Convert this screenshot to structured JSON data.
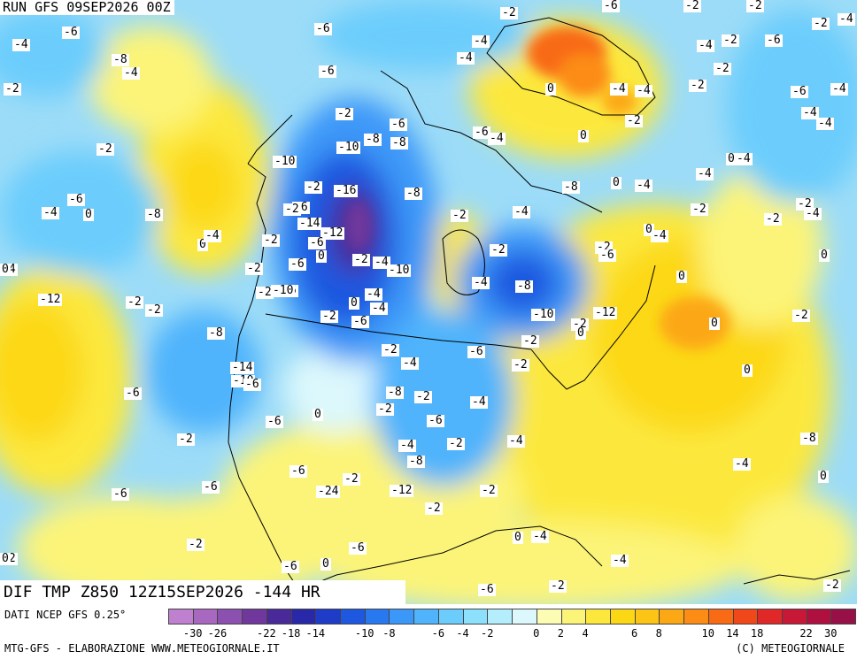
{
  "header": {
    "run_title": "RUN GFS 09SEP2026 00Z"
  },
  "map_title": "DIF TMP Z850 12Z15SEP2026 -144 HR",
  "footer": {
    "source": "DATI NCEP GFS 0.25°",
    "credit_left": "MTG-GFS - ELABORAZIONE WWW.METEOGIORNALE.IT",
    "credit_right": "(C) METEOGIORNALE"
  },
  "legend": {
    "colors": [
      "#c080d0",
      "#a868c0",
      "#8c50b0",
      "#70389c",
      "#4a2a98",
      "#2828a8",
      "#1e3cc8",
      "#1e58e0",
      "#2878f0",
      "#3c98f8",
      "#50b4fc",
      "#6ccdfc",
      "#8ce0fc",
      "#b4eefc",
      "#dcf8fc",
      "#fcfcb4",
      "#fcf478",
      "#fce83c",
      "#fcd814",
      "#fcc414",
      "#fca814",
      "#fc8c14",
      "#f86a14",
      "#f04818",
      "#e02828",
      "#c81838",
      "#b01040",
      "#981048"
    ],
    "tick_labels": [
      "-30",
      "-26",
      "-22",
      "-18",
      "-14",
      "-10",
      "-8",
      "-6",
      "-4",
      "-2",
      "0",
      "2",
      "4",
      "6",
      "8",
      "10",
      "14",
      "18",
      "22",
      "30"
    ]
  },
  "map_labels": [
    "-4",
    "-6",
    "-4",
    "-2",
    "-6",
    "-6",
    "-2",
    "-6",
    "-2",
    "-2",
    "-4",
    "-4",
    "-2",
    "-4",
    "-4",
    "-6",
    "-8",
    "-4",
    "-2",
    "-4",
    "-2",
    "-6",
    "-2",
    "-4",
    "-6",
    "-2",
    "-2",
    "-4",
    "-4",
    "-8",
    "-6",
    "-8",
    "-10",
    "-10",
    "-2",
    "-8",
    "-4",
    "-2",
    "-2",
    "-2",
    "-4",
    "-2",
    "-8",
    "-2",
    "-4",
    "-4",
    "0",
    "-8",
    "0",
    "-16",
    "-12",
    "-2",
    "-6",
    "-4",
    "0",
    "-2",
    "-6",
    "-2",
    "-2",
    "-6",
    "-2",
    "-4",
    "-2",
    "-10",
    "-2",
    "-4",
    "-6",
    "-2",
    "-12",
    "-14",
    "-4",
    "-6",
    "-2",
    "-8",
    "-10",
    "-10",
    "-4",
    "-6",
    "-2",
    "-8",
    "-4",
    "-6",
    "-2",
    "-12",
    "-14",
    "-10",
    "-6",
    "-6",
    "-8",
    "-6",
    "-2",
    "-4",
    "-8",
    "-4",
    "-6",
    "-6",
    "-24",
    "-2",
    "-6",
    "0",
    "-12",
    "-2",
    "-4",
    "-6",
    "-2",
    "-2",
    "-6",
    "0",
    "-6",
    "-4",
    "-8",
    "0",
    "-2",
    "-4",
    "-2",
    "-4",
    "-6",
    "0",
    "-4",
    "-4",
    "-2",
    "-2",
    "0",
    "0",
    "-2",
    "0",
    "-4",
    "-6",
    "-4",
    "-4",
    "-2",
    "0",
    "0",
    "-2",
    "-2",
    "-2",
    "-2",
    "0",
    "0",
    "0",
    "0",
    "0",
    "0",
    "0",
    "0"
  ]
}
